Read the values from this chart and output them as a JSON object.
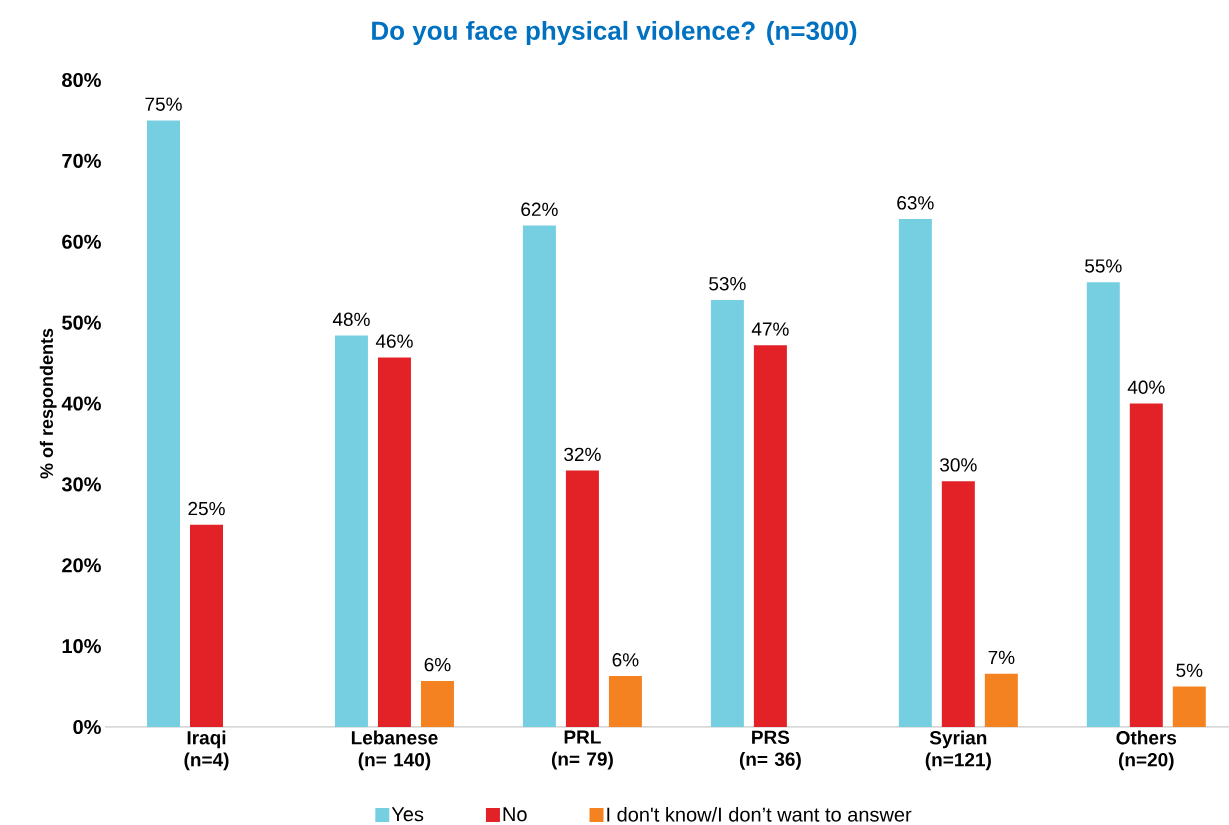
{
  "chart_data": {
    "type": "bar",
    "title": "Do you face physical violence? (n=300)",
    "ylabel": "% of respondents",
    "categories": [
      "Iraqi (n=4)",
      "Lebanese (n= 140)",
      "PRL (n= 79)",
      "PRS (n= 36)",
      "Syrian (n=121)",
      "Others (n=20)"
    ],
    "series": [
      {
        "name": "Yes",
        "color": "#76cfe1",
        "values": [
          75,
          48.4,
          62,
          52.8,
          62.8,
          55
        ],
        "value_labels": [
          "75%",
          "48%",
          "62%",
          "53%",
          "63%",
          "55%"
        ]
      },
      {
        "name": "No",
        "color": "#e32227",
        "values": [
          25,
          45.7,
          31.7,
          47.2,
          30.4,
          40
        ],
        "value_labels": [
          "25%",
          "46%",
          "32%",
          "47%",
          "30%",
          "40%"
        ]
      },
      {
        "name": "I don't know/I don’t want to answer",
        "color": "#f58220",
        "values": [
          null,
          5.7,
          6.3,
          null,
          6.6,
          5
        ],
        "value_labels": [
          null,
          "6%",
          "6%",
          null,
          "7%",
          "5%"
        ]
      }
    ],
    "ylim": [
      0,
      80
    ],
    "yticks": [
      {
        "value": 0,
        "label": "0%"
      },
      {
        "value": 10,
        "label": "10%"
      },
      {
        "value": 20,
        "label": "20%"
      },
      {
        "value": 30,
        "label": "30%"
      },
      {
        "value": 40,
        "label": "40%"
      },
      {
        "value": 50,
        "label": "50%"
      },
      {
        "value": 60,
        "label": "60%"
      },
      {
        "value": 70,
        "label": "70%"
      },
      {
        "value": 80,
        "label": "80%"
      }
    ],
    "grid": false,
    "legend": "bottom"
  }
}
